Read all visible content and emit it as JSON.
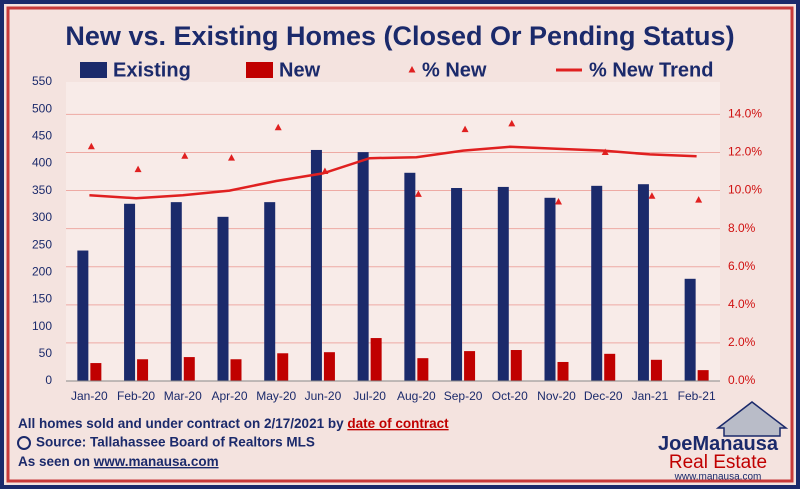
{
  "chart_data": {
    "type": "bar",
    "title": "New vs. Existing Homes (Closed Or Pending Status)",
    "categories": [
      "Jan-20",
      "Feb-20",
      "Mar-20",
      "Apr-20",
      "May-20",
      "Jun-20",
      "Jul-20",
      "Aug-20",
      "Sep-20",
      "Oct-20",
      "Nov-20",
      "Dec-20",
      "Jan-21",
      "Feb-21"
    ],
    "series": [
      {
        "name": "Existing",
        "kind": "bar",
        "color": "#1b2a6b",
        "values": [
          240,
          326,
          329,
          302,
          329,
          425,
          421,
          383,
          355,
          357,
          337,
          359,
          362,
          188
        ]
      },
      {
        "name": "New",
        "kind": "bar",
        "color": "#c00000",
        "values": [
          33,
          40,
          44,
          40,
          51,
          53,
          79,
          42,
          55,
          57,
          35,
          50,
          39,
          20
        ]
      },
      {
        "name": "% New",
        "kind": "scatter",
        "axis": "y2",
        "color": "#e02020",
        "values": [
          12.3,
          11.1,
          11.8,
          11.7,
          13.3,
          11.0,
          null,
          9.8,
          13.2,
          13.5,
          9.4,
          12.0,
          9.7,
          9.5
        ]
      },
      {
        "name": "% New Trend",
        "kind": "line",
        "axis": "y2",
        "color": "#e02020",
        "values": [
          9.75,
          9.6,
          9.75,
          10.0,
          10.5,
          10.9,
          11.7,
          11.75,
          12.1,
          12.3,
          12.2,
          12.1,
          11.9,
          11.8
        ]
      }
    ],
    "ylim": [
      0,
      550
    ],
    "yticks": [
      0,
      50,
      100,
      150,
      200,
      250,
      300,
      350,
      400,
      450,
      500,
      550
    ],
    "y2lim": [
      0,
      15.7
    ],
    "y2ticks": [
      {
        "value": 0,
        "label": "0.0%"
      },
      {
        "value": 2,
        "label": "2.0%"
      },
      {
        "value": 4,
        "label": "4.0%"
      },
      {
        "value": 6,
        "label": "6.0%"
      },
      {
        "value": 8,
        "label": "8.0%"
      },
      {
        "value": 10,
        "label": "10.0%"
      },
      {
        "value": 12,
        "label": "12.0%"
      },
      {
        "value": 14,
        "label": "14.0%"
      }
    ],
    "grid": true,
    "notes": [
      {
        "text": "All homes sold and under contract on 2/17/2021 by ",
        "link": "date of contract"
      },
      {
        "text": "Source: Tallahassee Board of Realtors MLS"
      },
      {
        "text": "As seen on ",
        "link": "www.manausa.com"
      }
    ],
    "logo": {
      "first": "Joe",
      "last": "Manausa",
      "line2": "Real Estate",
      "url": "www.manausa.com"
    }
  }
}
